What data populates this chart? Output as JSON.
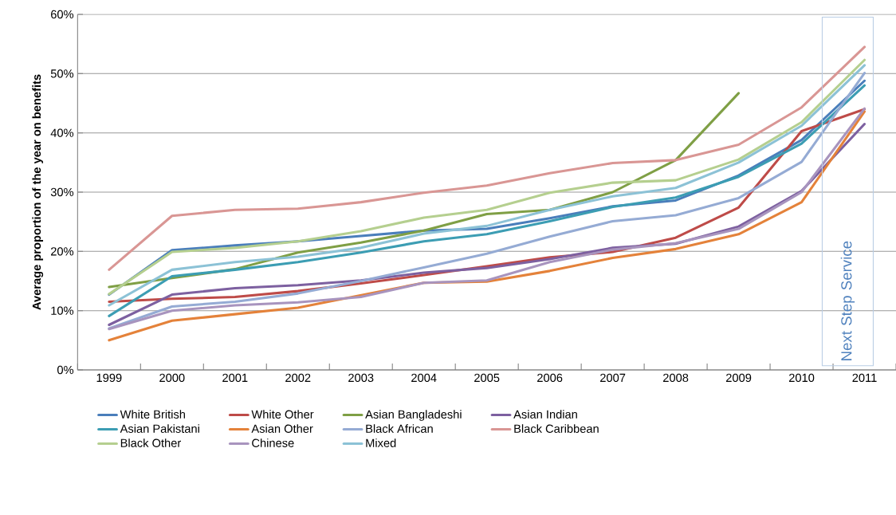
{
  "chart_data": {
    "type": "line",
    "ylabel": "Average proportion of the year on benefits",
    "categories": [
      "1999",
      "2000",
      "2001",
      "2002",
      "2003",
      "2004",
      "2005",
      "2006",
      "2007",
      "2008",
      "2009",
      "2010",
      "2011"
    ],
    "ylim": [
      0,
      60
    ],
    "yticks": [
      {
        "value": 0,
        "label": "0%"
      },
      {
        "value": 10,
        "label": "10%"
      },
      {
        "value": 20,
        "label": "20%"
      },
      {
        "value": 30,
        "label": "30%"
      },
      {
        "value": 40,
        "label": "40%"
      },
      {
        "value": 50,
        "label": "50%"
      },
      {
        "value": 60,
        "label": "60%"
      }
    ],
    "grid": "y",
    "legend": "bottom",
    "marker": "none",
    "line_style": "solid",
    "annotations": [
      "Next Step Service"
    ],
    "series": [
      {
        "name": "White British",
        "color": "#4a7ebb",
        "values": [
          12.7,
          20.2,
          21.0,
          21.7,
          22.6,
          23.5,
          23.8,
          25.6,
          27.6,
          28.6,
          32.8,
          38.8,
          48.8
        ]
      },
      {
        "name": "White Other",
        "color": "#be4b48",
        "values": [
          11.5,
          12.0,
          12.3,
          13.3,
          14.6,
          16.0,
          17.5,
          19.0,
          19.9,
          22.3,
          27.4,
          40.3,
          44.0
        ]
      },
      {
        "name": "Asian Bangladeshi",
        "color": "#7f9f45",
        "values": [
          14.0,
          15.5,
          17.0,
          19.8,
          21.5,
          23.5,
          26.3,
          27.0,
          30.0,
          35.4,
          46.7,
          null,
          null
        ]
      },
      {
        "name": "Asian Indian",
        "color": "#7d60a0",
        "values": [
          7.6,
          12.7,
          13.8,
          14.3,
          15.1,
          16.4,
          17.2,
          18.7,
          20.6,
          21.3,
          24.2,
          30.2,
          41.5
        ]
      },
      {
        "name": "Asian Pakistani",
        "color": "#3c9db3",
        "values": [
          9.1,
          15.8,
          16.9,
          18.2,
          19.8,
          21.7,
          22.9,
          25.1,
          27.5,
          29.1,
          32.6,
          38.2,
          48.0
        ]
      },
      {
        "name": "Asian Other",
        "color": "#e4823a",
        "values": [
          5.0,
          8.3,
          9.4,
          10.5,
          12.6,
          14.7,
          14.9,
          16.7,
          18.9,
          20.4,
          22.9,
          28.3,
          43.6
        ]
      },
      {
        "name": "Black African",
        "color": "#95abd4",
        "values": [
          7.0,
          10.7,
          11.5,
          12.9,
          15.0,
          17.3,
          19.6,
          22.5,
          25.1,
          26.1,
          29.0,
          35.1,
          50.1
        ]
      },
      {
        "name": "Black Caribbean",
        "color": "#d99694",
        "values": [
          16.9,
          26.0,
          27.0,
          27.2,
          28.3,
          29.9,
          31.1,
          33.2,
          34.9,
          35.4,
          38.0,
          44.3,
          54.5
        ]
      },
      {
        "name": "Black Other",
        "color": "#b5cf8f",
        "values": [
          12.8,
          19.9,
          20.6,
          21.7,
          23.4,
          25.7,
          27.0,
          29.9,
          31.6,
          32.0,
          35.5,
          41.8,
          52.3
        ]
      },
      {
        "name": "Chinese",
        "color": "#a894be",
        "values": [
          6.9,
          10.0,
          10.9,
          11.4,
          12.3,
          14.7,
          15.1,
          18.2,
          20.3,
          21.4,
          23.8,
          30.0,
          44.1
        ]
      },
      {
        "name": "Mixed",
        "color": "#8cc2d6",
        "values": [
          10.9,
          16.9,
          18.2,
          19.1,
          20.6,
          23.0,
          24.3,
          27.0,
          29.3,
          30.7,
          35.0,
          41.2,
          51.4
        ]
      }
    ]
  }
}
